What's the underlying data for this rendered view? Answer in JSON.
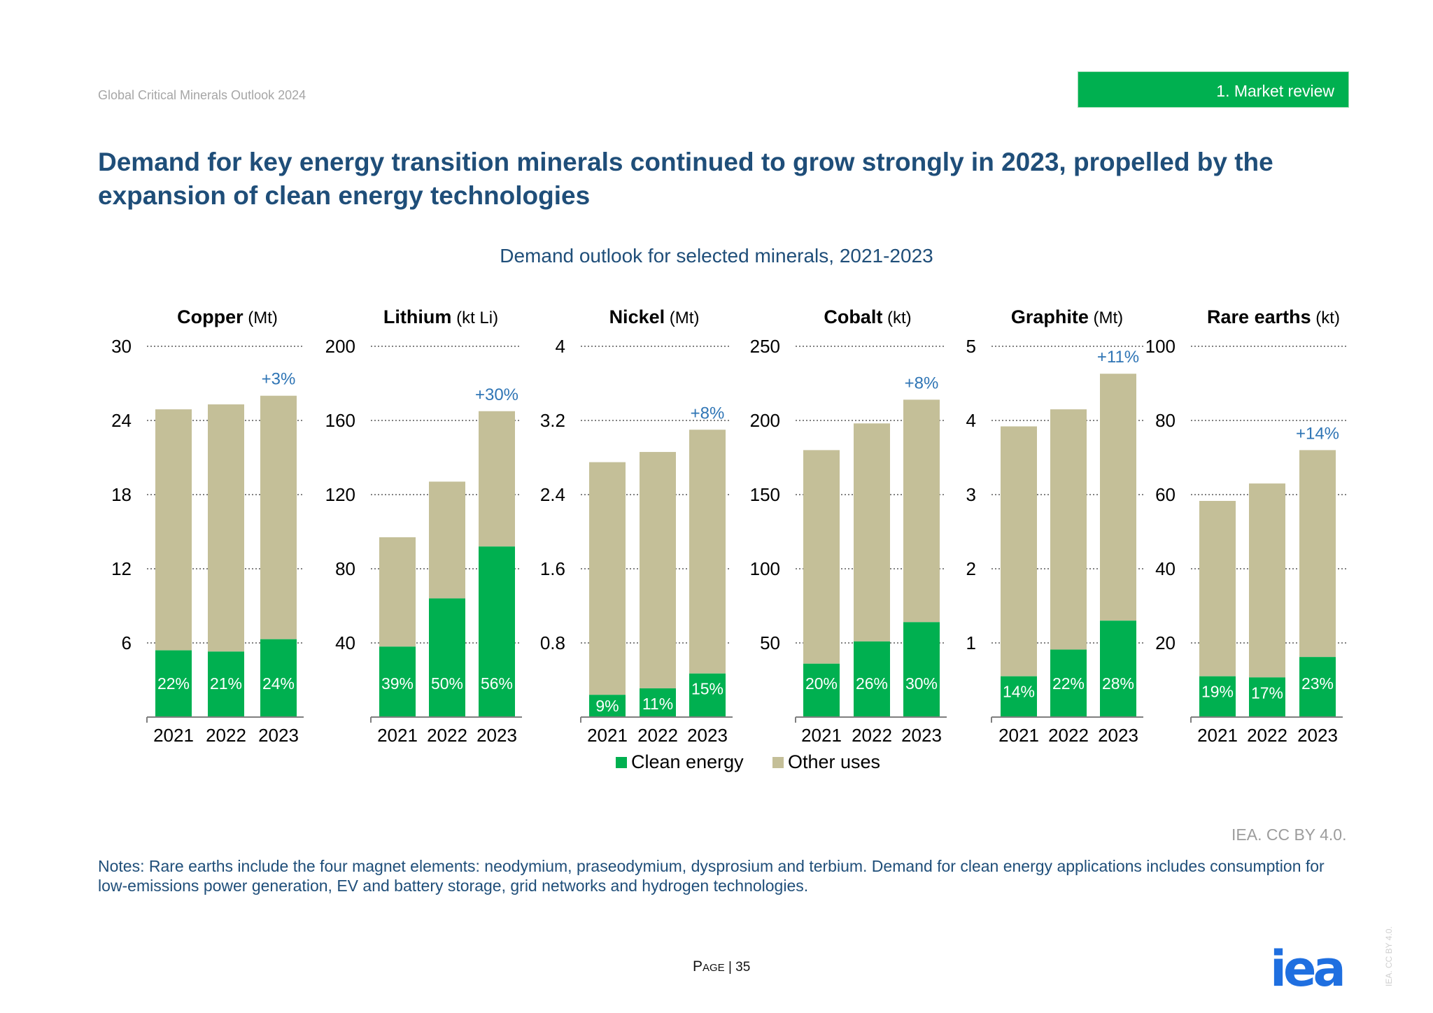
{
  "header": {
    "report_title": "Global Critical Minerals Outlook 2024",
    "section_badge": "1.    Market review"
  },
  "title": "Demand for key energy transition minerals continued to grow strongly in 2023, propelled by the expansion of clean energy technologies",
  "chart_title": "Demand outlook for selected minerals, 2021-2023",
  "colors": {
    "clean": "#00b050",
    "other": "#c4bf98",
    "growth": "#2f75b5",
    "axis_text": "#000000"
  },
  "chart_data": [
    {
      "type": "bar",
      "name": "Copper",
      "unit": "(Mt)",
      "categories": [
        "2021",
        "2022",
        "2023"
      ],
      "ylim": [
        0,
        30
      ],
      "yticks": [
        6,
        12,
        18,
        24,
        30
      ],
      "series": [
        {
          "name": "Clean energy",
          "values": [
            5.4,
            5.3,
            6.3
          ]
        },
        {
          "name": "Other uses",
          "values": [
            19.5,
            20.0,
            19.7
          ]
        }
      ],
      "share_labels": [
        "22%",
        "21%",
        "24%"
      ],
      "growth_label": "+3%"
    },
    {
      "type": "bar",
      "name": "Lithium",
      "unit": "(kt Li)",
      "categories": [
        "2021",
        "2022",
        "2023"
      ],
      "ylim": [
        0,
        200
      ],
      "yticks": [
        40,
        80,
        120,
        160,
        200
      ],
      "series": [
        {
          "name": "Clean energy",
          "values": [
            38,
            64,
            92
          ]
        },
        {
          "name": "Other uses",
          "values": [
            59,
            63,
            73
          ]
        }
      ],
      "share_labels": [
        "39%",
        "50%",
        "56%"
      ],
      "growth_label": "+30%"
    },
    {
      "type": "bar",
      "name": "Nickel",
      "unit": "(Mt)",
      "categories": [
        "2021",
        "2022",
        "2023"
      ],
      "ylim": [
        0,
        4.0
      ],
      "yticks": [
        0.8,
        1.6,
        2.4,
        3.2,
        4.0
      ],
      "series": [
        {
          "name": "Clean energy",
          "values": [
            0.24,
            0.31,
            0.47
          ]
        },
        {
          "name": "Other uses",
          "values": [
            2.51,
            2.55,
            2.63
          ]
        }
      ],
      "share_labels": [
        "9%",
        "11%",
        "15%"
      ],
      "growth_label": "+8%"
    },
    {
      "type": "bar",
      "name": "Cobalt",
      "unit": "(kt)",
      "categories": [
        "2021",
        "2022",
        "2023"
      ],
      "ylim": [
        0,
        250
      ],
      "yticks": [
        50,
        100,
        150,
        200,
        250
      ],
      "series": [
        {
          "name": "Clean energy",
          "values": [
            36,
            51,
            64
          ]
        },
        {
          "name": "Other uses",
          "values": [
            144,
            147,
            150
          ]
        }
      ],
      "share_labels": [
        "20%",
        "26%",
        "30%"
      ],
      "growth_label": "+8%"
    },
    {
      "type": "bar",
      "name": "Graphite",
      "unit": "(Mt)",
      "categories": [
        "2021",
        "2022",
        "2023"
      ],
      "ylim": [
        0,
        5
      ],
      "yticks": [
        1,
        2,
        3,
        4,
        5
      ],
      "series": [
        {
          "name": "Clean energy",
          "values": [
            0.55,
            0.91,
            1.3
          ]
        },
        {
          "name": "Other uses",
          "values": [
            3.37,
            3.24,
            3.33
          ]
        }
      ],
      "share_labels": [
        "14%",
        "22%",
        "28%"
      ],
      "growth_label": "+11%"
    },
    {
      "type": "bar",
      "name": "Rare earths",
      "unit": "(kt)",
      "categories": [
        "2021",
        "2022",
        "2023"
      ],
      "ylim": [
        0,
        100
      ],
      "yticks": [
        20,
        40,
        60,
        80,
        100
      ],
      "series": [
        {
          "name": "Clean energy",
          "values": [
            11,
            10.7,
            16.2
          ]
        },
        {
          "name": "Other uses",
          "values": [
            47.3,
            52.3,
            55.8
          ]
        }
      ],
      "share_labels": [
        "19%",
        "17%",
        "23%"
      ],
      "growth_label": "+14%"
    }
  ],
  "legend": {
    "clean": "Clean energy",
    "other": "Other uses"
  },
  "credit": "IEA. CC BY 4.0.",
  "notes": "Notes: Rare earths include the four magnet elements: neodymium, praseodymium, dysprosium and terbium. Demand for clean energy applications includes consumption for low-emissions power generation, EV and battery storage, grid networks and hydrogen technologies.",
  "footer": {
    "page_word": "Page",
    "page_number": "| 35",
    "logo": "iea",
    "vertical_credit": "IEA. CC BY 4.0."
  }
}
